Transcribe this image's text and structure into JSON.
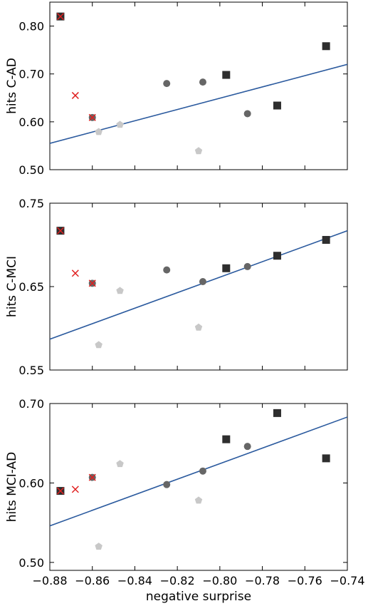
{
  "chart_data": [
    {
      "type": "scatter",
      "ylabel": "hits C-AD",
      "xlim": [
        -0.88,
        -0.74
      ],
      "ylim": [
        0.5,
        0.85
      ],
      "yticks": [
        0.5,
        0.6,
        0.7,
        0.8
      ],
      "ytick_labels": [
        "0.50",
        "0.60",
        "0.70",
        "0.80"
      ],
      "trend_line": {
        "x": [
          -0.88,
          -0.74
        ],
        "y": [
          0.555,
          0.72
        ]
      },
      "series": [
        {
          "marker": "square",
          "color": "#2e2e2e",
          "points": [
            [
              -0.875,
              0.82
            ],
            [
              -0.797,
              0.698
            ],
            [
              -0.773,
              0.634
            ],
            [
              -0.75,
              0.758
            ]
          ]
        },
        {
          "marker": "circle",
          "color": "#666666",
          "points": [
            [
              -0.86,
              0.609
            ],
            [
              -0.825,
              0.68
            ],
            [
              -0.808,
              0.683
            ],
            [
              -0.787,
              0.617
            ]
          ]
        },
        {
          "marker": "pentagon",
          "color": "#c8c8c8",
          "points": [
            [
              -0.857,
              0.579
            ],
            [
              -0.847,
              0.594
            ],
            [
              -0.81,
              0.539
            ]
          ]
        },
        {
          "marker": "x",
          "color": "#e02020",
          "points": [
            [
              -0.875,
              0.82
            ],
            [
              -0.868,
              0.655
            ],
            [
              -0.86,
              0.609
            ]
          ]
        }
      ]
    },
    {
      "type": "scatter",
      "ylabel": "hits C-MCI",
      "xlim": [
        -0.88,
        -0.74
      ],
      "ylim": [
        0.55,
        0.75
      ],
      "yticks": [
        0.55,
        0.65,
        0.75
      ],
      "ytick_labels": [
        "0.55",
        "0.65",
        "0.75"
      ],
      "trend_line": {
        "x": [
          -0.88,
          -0.74
        ],
        "y": [
          0.587,
          0.717
        ]
      },
      "series": [
        {
          "marker": "square",
          "color": "#2e2e2e",
          "points": [
            [
              -0.875,
              0.717
            ],
            [
              -0.797,
              0.672
            ],
            [
              -0.773,
              0.687
            ],
            [
              -0.75,
              0.706
            ]
          ]
        },
        {
          "marker": "circle",
          "color": "#666666",
          "points": [
            [
              -0.86,
              0.654
            ],
            [
              -0.825,
              0.67
            ],
            [
              -0.808,
              0.656
            ],
            [
              -0.787,
              0.674
            ]
          ]
        },
        {
          "marker": "pentagon",
          "color": "#c8c8c8",
          "points": [
            [
              -0.857,
              0.58
            ],
            [
              -0.847,
              0.645
            ],
            [
              -0.81,
              0.601
            ]
          ]
        },
        {
          "marker": "x",
          "color": "#e02020",
          "points": [
            [
              -0.875,
              0.717
            ],
            [
              -0.868,
              0.666
            ],
            [
              -0.86,
              0.654
            ]
          ]
        }
      ]
    },
    {
      "type": "scatter",
      "ylabel": "hits MCI-AD",
      "xlabel": "negative surprise",
      "xlim": [
        -0.88,
        -0.74
      ],
      "ylim": [
        0.49,
        0.7
      ],
      "yticks": [
        0.5,
        0.6,
        0.7
      ],
      "ytick_labels": [
        "0.50",
        "0.60",
        "0.70"
      ],
      "xticks": [
        -0.88,
        -0.86,
        -0.84,
        -0.82,
        -0.8,
        -0.78,
        -0.76,
        -0.74
      ],
      "xtick_labels": [
        "−0.88",
        "−0.86",
        "−0.84",
        "−0.82",
        "−0.80",
        "−0.78",
        "−0.76",
        "−0.74"
      ],
      "trend_line": {
        "x": [
          -0.88,
          -0.74
        ],
        "y": [
          0.546,
          0.683
        ]
      },
      "series": [
        {
          "marker": "square",
          "color": "#2e2e2e",
          "points": [
            [
              -0.875,
              0.59
            ],
            [
              -0.797,
              0.655
            ],
            [
              -0.773,
              0.688
            ],
            [
              -0.75,
              0.631
            ]
          ]
        },
        {
          "marker": "circle",
          "color": "#666666",
          "points": [
            [
              -0.86,
              0.607
            ],
            [
              -0.825,
              0.598
            ],
            [
              -0.808,
              0.615
            ],
            [
              -0.787,
              0.646
            ]
          ]
        },
        {
          "marker": "pentagon",
          "color": "#c8c8c8",
          "points": [
            [
              -0.857,
              0.52
            ],
            [
              -0.847,
              0.624
            ],
            [
              -0.81,
              0.578
            ]
          ]
        },
        {
          "marker": "x",
          "color": "#e02020",
          "points": [
            [
              -0.875,
              0.59
            ],
            [
              -0.868,
              0.592
            ],
            [
              -0.86,
              0.607
            ]
          ]
        }
      ]
    }
  ],
  "colors": {
    "trend_line": "#2b5a9e",
    "frame": "#000000"
  }
}
